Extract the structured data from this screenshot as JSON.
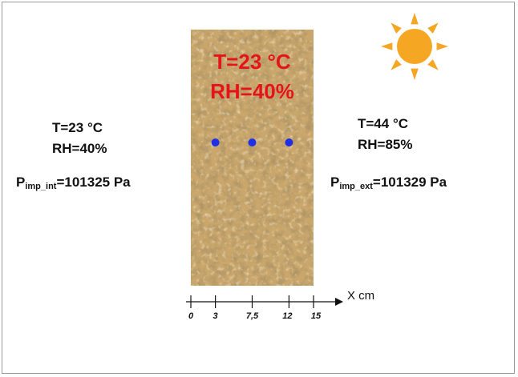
{
  "interior": {
    "temperature": "T=23 °C",
    "humidity": "RH=40%",
    "pressure_prefix": "P",
    "pressure_sub": "imp_int",
    "pressure_value": "=101325 Pa"
  },
  "exterior": {
    "temperature": "T=44 °C",
    "humidity": "RH=85%",
    "pressure_prefix": "P",
    "pressure_sub": "imp_ext",
    "pressure_value": "=101329 Pa"
  },
  "wall": {
    "temperature": "T=23 °C",
    "humidity": "RH=40%",
    "sensor_positions_cm": [
      3,
      7.5,
      12
    ],
    "sensor_color": "#1f2fe8",
    "label_color": "#e5141b",
    "material_color": "#c9a66b"
  },
  "axis": {
    "label": "X cm",
    "ticks": [
      {
        "value": 0,
        "label": "0"
      },
      {
        "value": 3,
        "label": "3"
      },
      {
        "value": 7.5,
        "label": "7,5"
      },
      {
        "value": 12,
        "label": "12"
      },
      {
        "value": 15,
        "label": "15"
      }
    ]
  },
  "sun": {
    "icon": "sun-icon",
    "color": "#f5a623"
  }
}
